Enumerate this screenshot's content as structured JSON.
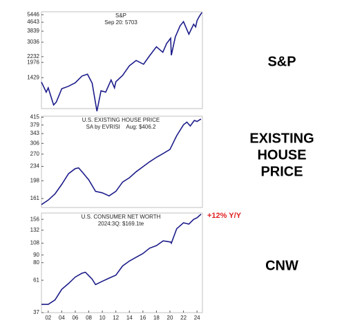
{
  "chart_data": [
    {
      "type": "line",
      "title": "S&P",
      "subtitle": "Sep 20: 5703",
      "side_label": [
        "S&P"
      ],
      "log_scale": true,
      "color": "#1c1c8a",
      "xlim": [
        2001,
        2024.8
      ],
      "ylim": [
        740,
        5800
      ],
      "yticks": [
        1429,
        1976,
        2232,
        3036,
        3839,
        4643,
        5446
      ],
      "x": [
        2001,
        2001.7,
        2002,
        2002.8,
        2003.2,
        2004,
        2005,
        2006,
        2007,
        2007.8,
        2008.5,
        2009.2,
        2009.8,
        2010.5,
        2011.3,
        2011.8,
        2012,
        2013,
        2014,
        2015,
        2016.1,
        2017,
        2018,
        2018.95,
        2019.5,
        2020.1,
        2020.2,
        2020.8,
        2021.5,
        2022,
        2022.8,
        2023.5,
        2023.8,
        2024,
        2024.3,
        2024.72
      ],
      "values": [
        1300,
        1050,
        1150,
        800,
        850,
        1130,
        1190,
        1280,
        1480,
        1540,
        1270,
        700,
        1080,
        1050,
        1360,
        1150,
        1310,
        1500,
        1840,
        2060,
        1900,
        2280,
        2750,
        2450,
        2950,
        3300,
        2300,
        3400,
        4300,
        4700,
        3600,
        4450,
        4200,
        4800,
        5200,
        5703
      ]
    },
    {
      "type": "line",
      "title": "U.S. EXISTING HOUSE PRICE",
      "subtitle": "SA by EVRISI    Aug: $406.2",
      "side_label": [
        "EXISTING",
        "HOUSE",
        "PRICE"
      ],
      "log_scale": true,
      "color": "#1c1c8a",
      "xlim": [
        2001,
        2024.8
      ],
      "ylim": [
        145,
        420
      ],
      "yticks": [
        161,
        198,
        234,
        270,
        306,
        343,
        379,
        415
      ],
      "x": [
        2001,
        2002,
        2003,
        2004,
        2005,
        2006,
        2006.5,
        2007,
        2008,
        2009,
        2010,
        2011,
        2012,
        2013,
        2014,
        2015,
        2016,
        2017,
        2018,
        2019,
        2020,
        2021,
        2022,
        2022.5,
        2023,
        2023.6,
        2024,
        2024.6
      ],
      "values": [
        150,
        158,
        170,
        190,
        215,
        228,
        230,
        220,
        200,
        175,
        172,
        166,
        175,
        195,
        205,
        220,
        233,
        247,
        260,
        272,
        285,
        335,
        380,
        392,
        375,
        400,
        395,
        406.2
      ]
    },
    {
      "type": "line",
      "title": "U.S. CONSUMER NET WORTH",
      "subtitle": "2024:3Q: $169.1te",
      "side_label": [
        "CNW"
      ],
      "callout": "+12% Y/Y",
      "callout_color": "#e02020",
      "log_scale": true,
      "color": "#1c1c8a",
      "xlim": [
        2001,
        2024.8
      ],
      "ylim": [
        37,
        172
      ],
      "yticks": [
        37,
        61,
        80,
        90,
        108,
        132,
        156
      ],
      "xticks": [
        {
          "value": 2002,
          "label": "02"
        },
        {
          "value": 2004,
          "label": "04"
        },
        {
          "value": 2006,
          "label": "06"
        },
        {
          "value": 2008,
          "label": "08"
        },
        {
          "value": 2010,
          "label": "10"
        },
        {
          "value": 2012,
          "label": "12"
        },
        {
          "value": 2014,
          "label": "14"
        },
        {
          "value": 2016,
          "label": "16"
        },
        {
          "value": 2018,
          "label": "18"
        },
        {
          "value": 2020,
          "label": "20"
        },
        {
          "value": 2022,
          "label": "22"
        },
        {
          "value": 2024,
          "label": "24"
        }
      ],
      "x": [
        2001,
        2002,
        2003,
        2004,
        2005,
        2006,
        2007,
        2007.5,
        2008.5,
        2009,
        2010,
        2011,
        2012,
        2013,
        2014,
        2015,
        2016,
        2017,
        2018,
        2019,
        2020.1,
        2020.2,
        2021,
        2022,
        2022.8,
        2023.5,
        2024,
        2024.6
      ],
      "values": [
        42,
        42,
        45,
        53,
        58,
        64,
        68,
        69,
        62,
        57,
        60,
        63,
        66,
        76,
        82,
        87,
        92,
        100,
        104,
        112,
        110,
        108,
        135,
        148,
        145,
        156,
        160,
        169.1
      ]
    }
  ]
}
